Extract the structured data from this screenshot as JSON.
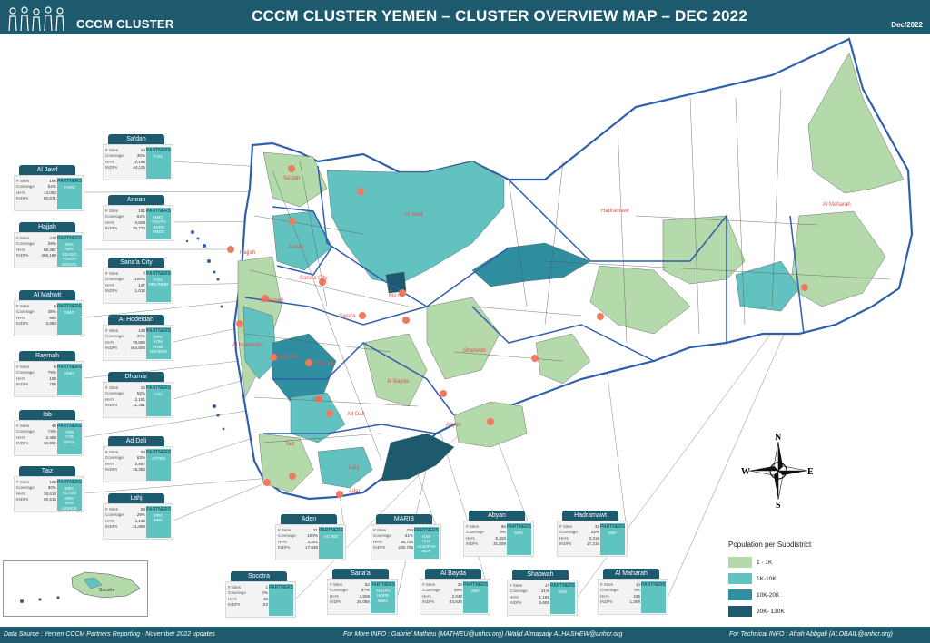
{
  "header": {
    "logo_text": "CCCM CLUSTER",
    "title": "CCCM CLUSTER YEMEN – CLUSTER OVERVIEW MAP – DEC 2022",
    "date": "Dec/2022"
  },
  "footer": {
    "source": "Data Source : Yemen CCCM Partners Reporting - November 2022 updates",
    "info": "For More INFO : Gabriel Mathieu (MATHIEU@unhcr.org) /Walid Almasady ALHASHEW@unhcr.org",
    "technical": "For Technical INFO : Afrah Abbgali (ALOBAIL@unhcr.org)"
  },
  "colors": {
    "header_bg": "#1d5a6d",
    "boundary": "#2f5fad",
    "marker": "#f07a5e",
    "class1": "#b4d9aa",
    "class2": "#62c2c0",
    "class3": "#2f8fa0",
    "class4": "#1d5a6d"
  },
  "map_labels": [
    "Sa'dah",
    "Al Jawf",
    "Amran",
    "Hajjah",
    "Sana'a City",
    "Al Mahwit",
    "Ma'rib",
    "Sana'a",
    "Al Hodeidah",
    "Shabwah",
    "Raymah",
    "Dhamar",
    "Al Bayda",
    "Ibb",
    "Ad Dali",
    "Abyan",
    "Taiz",
    "Lahj",
    "Aden",
    "Hadramawt",
    "Al Maharah"
  ],
  "labels": {
    "partners": "PARTNERS",
    "stat_keys": [
      "# Sites",
      "Coverage",
      "HH's",
      "INDPs"
    ]
  },
  "cards": [
    {
      "name": "Sa'dah",
      "sites": "44",
      "coverage": "35%",
      "hh": "2,185",
      "ind": "44,115",
      "partners": [
        "YOC"
      ]
    },
    {
      "name": "Al Jawf",
      "sites": "156",
      "coverage": "52%",
      "hh": "13,054",
      "ind": "80,671",
      "partners": [
        "YARD"
      ]
    },
    {
      "name": "Amran",
      "sites": "181",
      "coverage": "63%",
      "hh": "4,638",
      "ind": "35,774",
      "partners": [
        "NMO",
        "YOUTH HOPE",
        "FMDO"
      ]
    },
    {
      "name": "Hajjah",
      "sites": "416",
      "coverage": "28%",
      "hh": "58,387",
      "ind": "366,160",
      "partners": [
        "DRC",
        "NRC",
        "BSADO",
        "TOUSY",
        "SOCIAL ORGANISATION"
      ]
    },
    {
      "name": "Sana'a City",
      "sites": "7",
      "coverage": "100%",
      "hh": "147",
      "ind": "1,012",
      "partners": [
        "YOC",
        "NRC/NMO"
      ]
    },
    {
      "name": "Al Mahwit",
      "sites": "6",
      "coverage": "38%",
      "hh": "680",
      "ind": "3,884",
      "partners": [
        "NMO"
      ]
    },
    {
      "name": "Al Hodeidah",
      "sites": "128",
      "coverage": "30%",
      "hh": "79,596",
      "ind": "464,600",
      "partners": [
        "DRC",
        "IOM",
        "RISE",
        "OTHERS"
      ]
    },
    {
      "name": "Raymah",
      "sites": "8",
      "coverage": "75%",
      "hh": "155",
      "ind": "765",
      "partners": [
        "NMO"
      ]
    },
    {
      "name": "Dhamar",
      "sites": "22",
      "coverage": "52%",
      "hh": "2,151",
      "ind": "11,481",
      "partners": [
        "YOC"
      ]
    },
    {
      "name": "Ibb",
      "sites": "49",
      "coverage": "73%",
      "hh": "2,466",
      "ind": "12,961",
      "partners": [
        "YDN",
        "YYE",
        "NFDA"
      ]
    },
    {
      "name": "Ad Dali",
      "sites": "58",
      "coverage": "63%",
      "hh": "2,897",
      "ind": "15,354",
      "partners": [
        "ACTED"
      ]
    },
    {
      "name": "Taiz",
      "sites": "196",
      "coverage": "30%",
      "hh": "16,614",
      "ind": "90,515",
      "partners": [
        "DRC",
        "ACTED",
        "NRC",
        "SHS",
        "UNHCR",
        "YARD"
      ]
    },
    {
      "name": "Lahj",
      "sites": "59",
      "coverage": "29%",
      "hh": "4,132",
      "ind": "21,969",
      "partners": [
        "DRC",
        "NRC"
      ]
    },
    {
      "name": "Aden",
      "sites": "31",
      "coverage": "100%",
      "hh": "3,501",
      "ind": "17,849",
      "partners": [
        "ACTED"
      ]
    },
    {
      "name": "MARIB",
      "sites": "224",
      "coverage": "41%",
      "hh": "35,729",
      "ind": "230,705",
      "partners": [
        "IOM",
        "SHS",
        "ALSAFAA",
        "MDF"
      ]
    },
    {
      "name": "Abyan",
      "sites": "66",
      "coverage": "0%",
      "hh": "5,326",
      "ind": "31,809",
      "partners": [
        "NRC"
      ]
    },
    {
      "name": "Hadramawt",
      "sites": "32",
      "coverage": "25%",
      "hh": "3,316",
      "ind": "17,210",
      "partners": [
        "SDF"
      ]
    },
    {
      "name": "Socotra",
      "sites": "1",
      "coverage": "0%",
      "hh": "15",
      "ind": "102",
      "partners": []
    },
    {
      "name": "Sana'a",
      "sites": "52",
      "coverage": "37%",
      "hh": "3,508",
      "ind": "26,056",
      "partners": [
        "YOUTH HOPE",
        "NMO"
      ]
    },
    {
      "name": "Al Bayda",
      "sites": "34",
      "coverage": "18%",
      "hh": "2,040",
      "ind": "44,624",
      "partners": [
        "SDF"
      ]
    },
    {
      "name": "Shabwah",
      "sites": "17",
      "coverage": "41%",
      "hh": "1,186",
      "ind": "6,605",
      "partners": [
        "SHS"
      ]
    },
    {
      "name": "Al Maharah",
      "sites": "14",
      "coverage": "0%",
      "hh": "235",
      "ind": "1,308",
      "partners": []
    }
  ],
  "inset": {
    "label": "Socotra"
  },
  "compass": {
    "n": "N",
    "s": "S",
    "e": "E",
    "w": "W"
  },
  "legend": {
    "title": "Population per Subdistrict",
    "items": [
      {
        "label": "1 - 1K",
        "color": "#b4d9aa"
      },
      {
        "label": "1K-10K",
        "color": "#62c2c0"
      },
      {
        "label": "10K-20K",
        "color": "#2f8fa0"
      },
      {
        "label": "20K- 130K",
        "color": "#1d5a6d"
      }
    ]
  }
}
